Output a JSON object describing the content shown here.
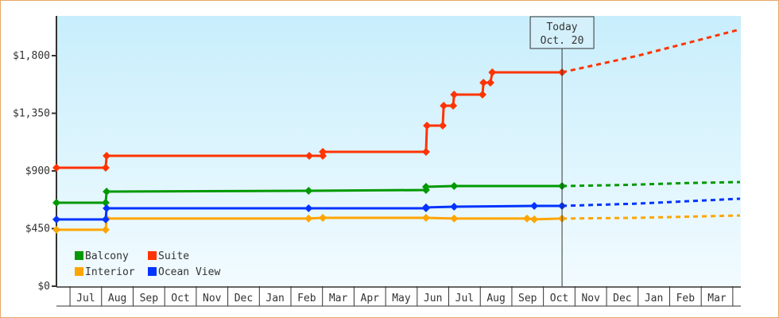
{
  "chart_data": {
    "type": "line",
    "title": "",
    "xlabel": "",
    "ylabel": "",
    "x_unit": "months since Jul 1 (first year)",
    "xlim": [
      -0.43,
      21.23
    ],
    "ylim": [
      0,
      2100
    ],
    "y_ticks": [
      0,
      450,
      900,
      1350,
      1800
    ],
    "y_tick_labels": [
      "$0",
      "$450",
      "$900",
      "$1,350",
      "$1,800"
    ],
    "x_tick_labels": [
      "Jul",
      "Aug",
      "Sep",
      "Oct",
      "Nov",
      "Dec",
      "Jan",
      "Feb",
      "Mar",
      "Apr",
      "May",
      "Jun",
      "Jul",
      "Aug",
      "Sep",
      "Oct",
      "Nov",
      "Dec",
      "Jan",
      "Feb",
      "Mar"
    ],
    "today": {
      "x": 15.59,
      "label_line1": "Today",
      "label_line2": "Oct. 20"
    },
    "legend_position": "bottom-left",
    "series": [
      {
        "name": "Balcony",
        "color": "#009900",
        "points": [
          [
            -0.43,
            652
          ],
          [
            1.13,
            652
          ],
          [
            1.16,
            739
          ],
          [
            7.56,
            745
          ],
          [
            11.28,
            751
          ],
          [
            11.28,
            776
          ],
          [
            12.17,
            782
          ],
          [
            15.59,
            782
          ]
        ],
        "projection": [
          [
            15.59,
            782
          ],
          [
            17.5,
            790
          ],
          [
            19.5,
            805
          ],
          [
            21.23,
            813
          ]
        ]
      },
      {
        "name": "Suite",
        "color": "#ff3300",
        "points": [
          [
            -0.43,
            925
          ],
          [
            1.13,
            925
          ],
          [
            1.16,
            1018
          ],
          [
            7.58,
            1018
          ],
          [
            8.01,
            1018
          ],
          [
            8.01,
            1049
          ],
          [
            11.28,
            1049
          ],
          [
            11.31,
            1254
          ],
          [
            11.81,
            1254
          ],
          [
            11.84,
            1409
          ],
          [
            12.14,
            1409
          ],
          [
            12.17,
            1496
          ],
          [
            13.07,
            1496
          ],
          [
            13.1,
            1589
          ],
          [
            13.32,
            1589
          ],
          [
            13.38,
            1670
          ],
          [
            15.59,
            1670
          ]
        ],
        "projection": [
          [
            15.59,
            1670
          ],
          [
            18,
            1800
          ],
          [
            21.23,
            2005
          ]
        ]
      },
      {
        "name": "Interior",
        "color": "#ffa500",
        "points": [
          [
            -0.43,
            441
          ],
          [
            1.13,
            441
          ],
          [
            1.16,
            528
          ],
          [
            7.56,
            528
          ],
          [
            8.01,
            534
          ],
          [
            11.28,
            534
          ],
          [
            12.17,
            528
          ],
          [
            14.48,
            528
          ],
          [
            14.71,
            522
          ],
          [
            15.59,
            528
          ]
        ],
        "projection": [
          [
            15.59,
            528
          ],
          [
            18,
            534
          ],
          [
            21.23,
            552
          ]
        ]
      },
      {
        "name": "Ocean View",
        "color": "#0033ff",
        "points": [
          [
            -0.43,
            521
          ],
          [
            1.13,
            521
          ],
          [
            1.16,
            608
          ],
          [
            7.56,
            608
          ],
          [
            11.28,
            608
          ],
          [
            11.28,
            615
          ],
          [
            12.17,
            621
          ],
          [
            14.71,
            627
          ],
          [
            15.59,
            627
          ]
        ],
        "projection": [
          [
            15.59,
            627
          ],
          [
            18,
            645
          ],
          [
            21.23,
            683
          ]
        ]
      }
    ]
  }
}
